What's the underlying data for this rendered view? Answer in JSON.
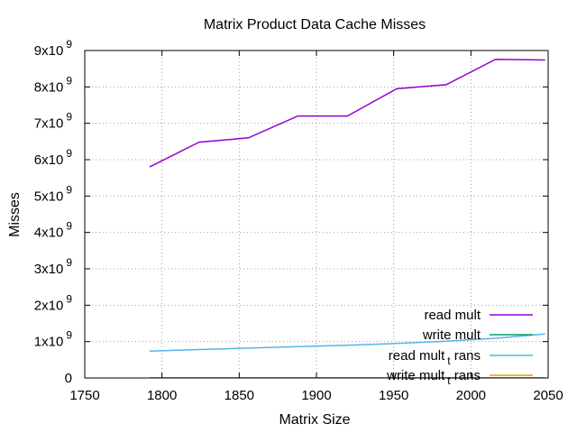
{
  "chart_data": {
    "type": "line",
    "title": "Matrix Product Data Cache Misses",
    "xlabel": "Matrix Size",
    "ylabel": "Misses",
    "xlim": [
      1750,
      2050
    ],
    "ylim": [
      0,
      9000000000
    ],
    "grid": true,
    "legend_position": "bottom-right",
    "x_ticks": [
      {
        "value": 1750,
        "label": "1750"
      },
      {
        "value": 1800,
        "label": "1800"
      },
      {
        "value": 1850,
        "label": "1850"
      },
      {
        "value": 1900,
        "label": "1900"
      },
      {
        "value": 1950,
        "label": "1950"
      },
      {
        "value": 2000,
        "label": "2000"
      },
      {
        "value": 2050,
        "label": "2050"
      }
    ],
    "y_ticks": [
      {
        "value": 0,
        "base": "0",
        "exp": ""
      },
      {
        "value": 1000000000,
        "base": "1x10",
        "exp": "9"
      },
      {
        "value": 2000000000,
        "base": "2x10",
        "exp": "9"
      },
      {
        "value": 3000000000,
        "base": "3x10",
        "exp": "9"
      },
      {
        "value": 4000000000,
        "base": "4x10",
        "exp": "9"
      },
      {
        "value": 5000000000,
        "base": "5x10",
        "exp": "9"
      },
      {
        "value": 6000000000,
        "base": "6x10",
        "exp": "9"
      },
      {
        "value": 7000000000,
        "base": "7x10",
        "exp": "9"
      },
      {
        "value": 8000000000,
        "base": "8x10",
        "exp": "9"
      },
      {
        "value": 9000000000,
        "base": "9x10",
        "exp": "9"
      }
    ],
    "series": [
      {
        "name": "read mult",
        "legend_parts": {
          "before": "read mult",
          "sub": "",
          "after": ""
        },
        "color": "#9400d3",
        "x": [
          1792,
          1824,
          1856,
          1888,
          1920,
          1952,
          1984,
          2016,
          2048
        ],
        "y": [
          5800000000,
          6480000000,
          6600000000,
          7200000000,
          7200000000,
          7950000000,
          8060000000,
          8760000000,
          8740000000
        ]
      },
      {
        "name": "write mult",
        "legend_parts": {
          "before": "write mult",
          "sub": "",
          "after": ""
        },
        "color": "#009e73",
        "x": [
          1792,
          1824,
          1856,
          1888,
          1920,
          1952,
          1984,
          2016,
          2048
        ],
        "y": [
          5000000,
          5000000,
          5000000,
          5000000,
          5000000,
          5000000,
          5000000,
          5000000,
          5000000
        ]
      },
      {
        "name": "read mult_t rans",
        "legend_parts": {
          "before": "read mult",
          "sub": "t",
          "after": " rans"
        },
        "color": "#56b4e9",
        "x": [
          1792,
          1824,
          1856,
          1888,
          1920,
          1952,
          1984,
          2016,
          2048
        ],
        "y": [
          740000000,
          780000000,
          820000000,
          860000000,
          900000000,
          950000000,
          1010000000,
          1090000000,
          1210000000
        ]
      },
      {
        "name": "write mult_t rans",
        "legend_parts": {
          "before": "write mult",
          "sub": "t",
          "after": " rans"
        },
        "color": "#e69f00",
        "x": [
          1792,
          1824,
          1856,
          1888,
          1920,
          1952,
          1984,
          2016,
          2048
        ],
        "y": [
          5000000,
          5000000,
          5000000,
          5000000,
          5000000,
          5000000,
          5000000,
          5000000,
          5000000
        ]
      }
    ]
  }
}
